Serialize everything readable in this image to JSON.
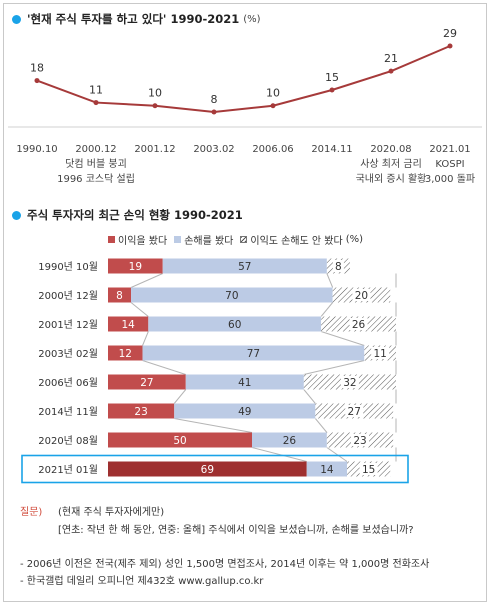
{
  "colors": {
    "accent_dot": "#1aa3e8",
    "line": "#a63a3a",
    "profit": "#c14c4c",
    "profit_highlight": "#9e2f2f",
    "loss": "#bccbe5",
    "highlight_box": "#1aa3e8"
  },
  "section1": {
    "title": "'현재 주식 투자를 하고 있다' 1990-2021",
    "unit": "(%)"
  },
  "section2": {
    "title": "주식 투자자의 최근 손익 현황 1990-2021"
  },
  "legend": {
    "profit": "이익을 봤다",
    "loss": "손해를 봤다",
    "none": "이익도 손해도 안 봤다",
    "unit": "(%)"
  },
  "chart_data": [
    {
      "type": "line",
      "title": "'현재 주식 투자를 하고 있다' 1990-2021",
      "unit": "(%)",
      "x": [
        "1990.10",
        "2000.12",
        "2001.12",
        "2003.02",
        "2006.06",
        "2014.11",
        "2020.08",
        "2021.01"
      ],
      "series": [
        {
          "values": [
            18,
            11,
            10,
            8,
            10,
            15,
            21,
            29
          ]
        }
      ],
      "annotations": [
        {
          "x": "2000.12",
          "lines": [
            "닷컴 버블 붕괴",
            "1996 코스닥 설립"
          ]
        },
        {
          "x": "2020.08",
          "lines": [
            "사상 최저 금리",
            "국내외 증시 활황"
          ]
        },
        {
          "x": "2021.01",
          "lines": [
            "KOSPI",
            "3,000 돌파"
          ]
        }
      ]
    },
    {
      "type": "bar",
      "orientation": "horizontal",
      "stacked": true,
      "title": "주식 투자자의 최근 손익 현황 1990-2021",
      "categories": [
        "1990년 10월",
        "2000년 12월",
        "2001년 12월",
        "2003년 02월",
        "2006년 06월",
        "2014년 11월",
        "2020년 08월",
        "2021년 01월"
      ],
      "series": [
        {
          "name": "이익을 봤다",
          "values": [
            19,
            8,
            14,
            12,
            27,
            23,
            50,
            69
          ]
        },
        {
          "name": "손해를 봤다",
          "values": [
            57,
            70,
            60,
            77,
            41,
            49,
            26,
            14
          ]
        },
        {
          "name": "이익도 손해도 안 봤다",
          "values": [
            8,
            20,
            26,
            11,
            32,
            27,
            23,
            15
          ]
        }
      ],
      "highlighted_category": "2021년 01월",
      "legend": "top"
    }
  ],
  "notes": {
    "question_label": "질문)",
    "question_1": "(현재 주식 투자자에게만)",
    "question_2": "[연초: 작년 한 해 동안, 연중: 올해] 주식에서 이익을 보셨습니까, 손해를 보셨습니까?",
    "footnote_1": "- 2006년 이전은 전국(제주 제외) 성인 1,500명 면접조사, 2014년 이후는 약 1,000명 전화조사",
    "footnote_2": "- 한국갤럽 데일리 오피니언 제432호 www.gallup.co.kr"
  }
}
